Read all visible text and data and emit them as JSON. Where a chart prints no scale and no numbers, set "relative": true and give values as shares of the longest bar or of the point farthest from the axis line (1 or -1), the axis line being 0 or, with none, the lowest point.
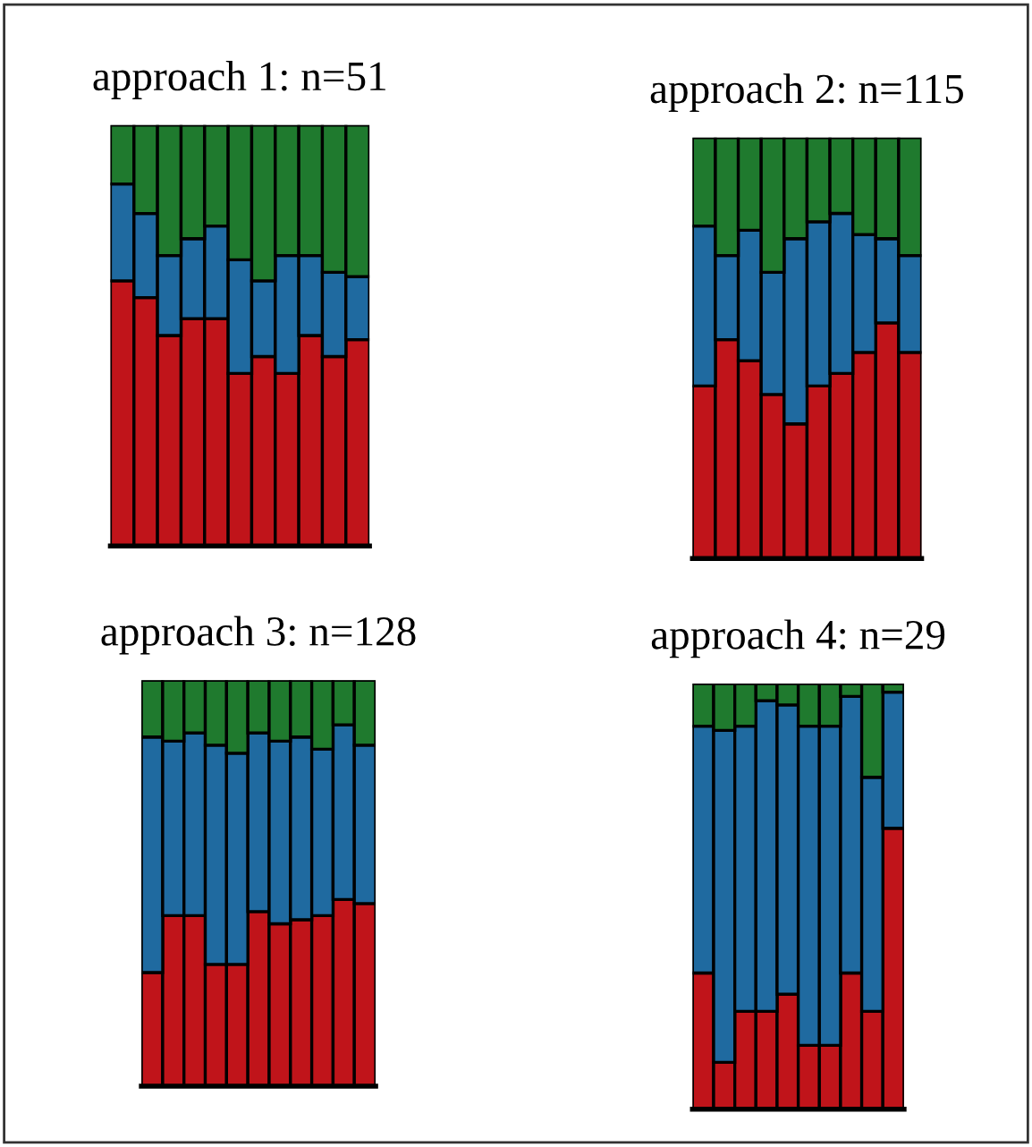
{
  "chart_data": [
    {
      "type": "bar",
      "title": "approach 1: n=51",
      "stacked": true,
      "relative": true,
      "categories": [
        null,
        null,
        null,
        null,
        null,
        null,
        null,
        null,
        null,
        null,
        null
      ],
      "series": [
        {
          "color": "#c0141a",
          "values": [
            0.63,
            0.59,
            0.5,
            0.54,
            0.54,
            0.41,
            0.45,
            0.41,
            0.5,
            0.45,
            0.49
          ]
        },
        {
          "color": "#1f6aa0",
          "values": [
            0.23,
            0.2,
            0.19,
            0.19,
            0.22,
            0.27,
            0.18,
            0.28,
            0.19,
            0.2,
            0.15
          ]
        },
        {
          "color": "#1f7a2e",
          "values": [
            0.14,
            0.21,
            0.31,
            0.27,
            0.24,
            0.32,
            0.37,
            0.31,
            0.31,
            0.35,
            0.36
          ]
        }
      ]
    },
    {
      "type": "bar",
      "title": "approach 2: n=115",
      "stacked": true,
      "relative": true,
      "categories": [
        null,
        null,
        null,
        null,
        null,
        null,
        null,
        null,
        null,
        null
      ],
      "series": [
        {
          "color": "#c0141a",
          "values": [
            0.41,
            0.52,
            0.47,
            0.39,
            0.32,
            0.41,
            0.44,
            0.49,
            0.56,
            0.49
          ]
        },
        {
          "color": "#1f6aa0",
          "values": [
            0.38,
            0.2,
            0.31,
            0.29,
            0.44,
            0.39,
            0.38,
            0.28,
            0.2,
            0.23
          ]
        },
        {
          "color": "#1f7a2e",
          "values": [
            0.21,
            0.28,
            0.22,
            0.32,
            0.24,
            0.2,
            0.18,
            0.23,
            0.24,
            0.28
          ]
        }
      ]
    },
    {
      "type": "bar",
      "title": "approach 3: n=128",
      "stacked": true,
      "relative": true,
      "categories": [
        null,
        null,
        null,
        null,
        null,
        null,
        null,
        null,
        null,
        null,
        null
      ],
      "series": [
        {
          "color": "#c0141a",
          "values": [
            0.28,
            0.42,
            0.42,
            0.3,
            0.3,
            0.43,
            0.4,
            0.41,
            0.42,
            0.46,
            0.45
          ]
        },
        {
          "color": "#1f6aa0",
          "values": [
            0.58,
            0.43,
            0.45,
            0.54,
            0.52,
            0.44,
            0.45,
            0.45,
            0.41,
            0.43,
            0.39
          ]
        },
        {
          "color": "#1f7a2e",
          "values": [
            0.14,
            0.15,
            0.13,
            0.16,
            0.18,
            0.13,
            0.15,
            0.14,
            0.17,
            0.11,
            0.16
          ]
        }
      ]
    },
    {
      "type": "bar",
      "title": "approach 4: n=29",
      "stacked": true,
      "relative": true,
      "categories": [
        null,
        null,
        null,
        null,
        null,
        null,
        null,
        null,
        null,
        null
      ],
      "series": [
        {
          "color": "#c0141a",
          "values": [
            0.32,
            0.11,
            0.23,
            0.23,
            0.27,
            0.15,
            0.15,
            0.32,
            0.23,
            0.66
          ]
        },
        {
          "color": "#1f6aa0",
          "values": [
            0.58,
            0.78,
            0.67,
            0.73,
            0.68,
            0.75,
            0.75,
            0.65,
            0.55,
            0.32
          ]
        },
        {
          "color": "#1f7a2e",
          "values": [
            0.1,
            0.11,
            0.1,
            0.04,
            0.05,
            0.1,
            0.1,
            0.03,
            0.22,
            0.02
          ]
        }
      ]
    }
  ]
}
